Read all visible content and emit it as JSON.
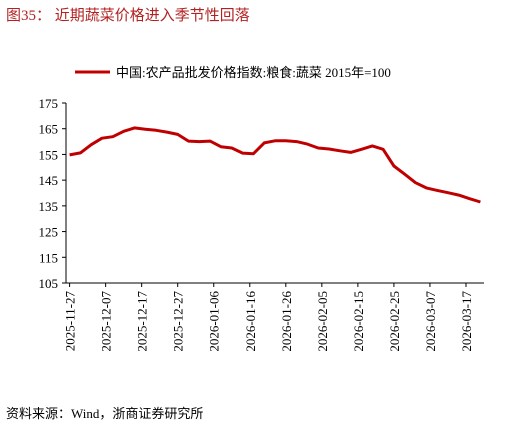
{
  "chart_data": {
    "type": "line",
    "title": "图35： 近期蔬菜价格进入季节性回落",
    "source": "资料来源：Wind，浙商证券研究所",
    "x": [
      "2025-11-27",
      "2025-11-30",
      "2025-12-03",
      "2025-12-06",
      "2025-12-09",
      "2025-12-12",
      "2025-12-15",
      "2025-12-18",
      "2025-12-21",
      "2025-12-24",
      "2025-12-27",
      "2025-12-30",
      "2026-01-02",
      "2026-01-05",
      "2026-01-08",
      "2026-01-11",
      "2026-01-14",
      "2026-01-17",
      "2026-01-20",
      "2026-01-23",
      "2026-01-26",
      "2026-01-29",
      "2026-02-01",
      "2026-02-04",
      "2026-02-07",
      "2026-02-10",
      "2026-02-13",
      "2026-02-16",
      "2026-02-19",
      "2026-02-22",
      "2026-02-25",
      "2026-02-28",
      "2026-03-03",
      "2026-03-06",
      "2026-03-09",
      "2026-03-12",
      "2026-03-15",
      "2026-03-18",
      "2026-03-21"
    ],
    "series": [
      {
        "name": "中国:农产品批发价格指数:粮食:蔬菜 2015年=100",
        "color": "#c00000",
        "values": [
          154.8,
          155.6,
          158.8,
          161.3,
          161.9,
          164.0,
          165.3,
          164.8,
          164.4,
          163.7,
          162.8,
          160.2,
          160.0,
          160.2,
          158.0,
          157.5,
          155.5,
          155.3,
          159.5,
          160.3,
          160.3,
          160.0,
          159.0,
          157.5,
          157.1,
          156.4,
          155.8,
          157.0,
          158.3,
          157.0,
          150.5,
          147.3,
          144.0,
          142.0,
          141.0,
          140.1,
          139.2,
          137.8,
          136.5
        ]
      }
    ],
    "xlim": [
      "2025-11-26",
      "2026-03-22"
    ],
    "xticks": [
      "2025-11-27",
      "2025-12-07",
      "2025-12-17",
      "2025-12-27",
      "2026-01-06",
      "2026-01-16",
      "2026-01-26",
      "2026-02-05",
      "2026-02-15",
      "2026-02-25",
      "2026-03-07",
      "2026-03-17"
    ],
    "ylim": [
      105,
      175
    ],
    "yticks": [
      105,
      115,
      125,
      135,
      145,
      155,
      165,
      175
    ],
    "legend": "top"
  }
}
